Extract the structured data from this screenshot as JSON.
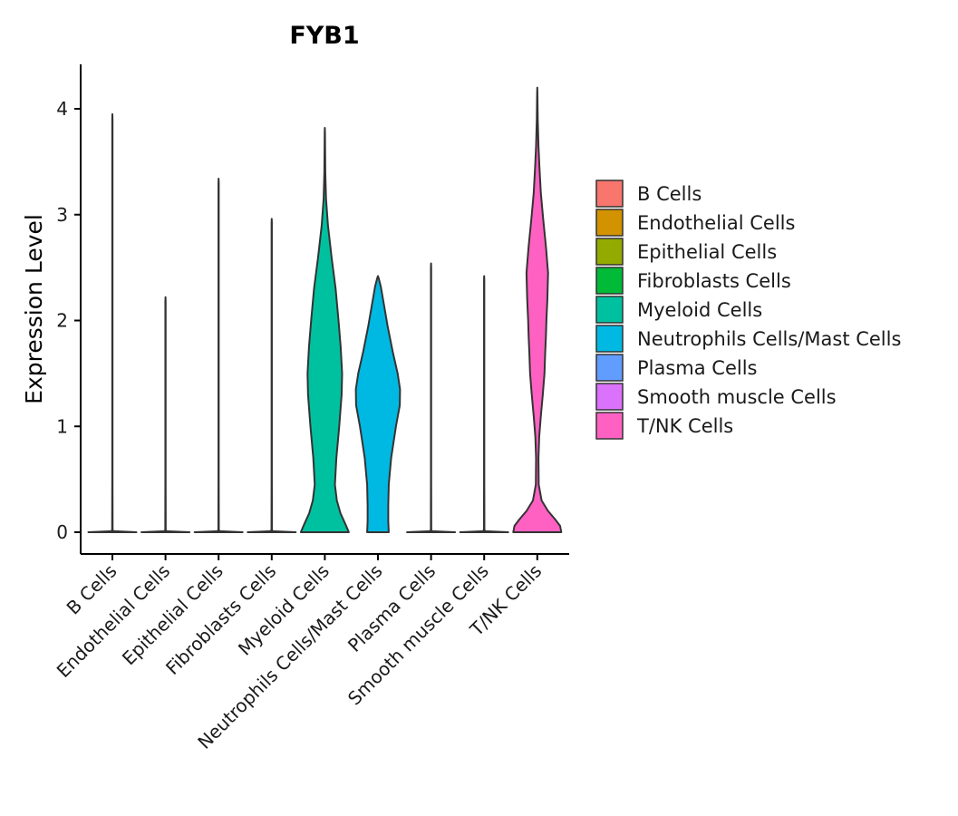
{
  "chart_data": {
    "type": "violin",
    "title": "FYB1",
    "xlabel": "",
    "ylabel": "Expression Level",
    "ylim": [
      -0.2,
      4.42
    ],
    "yticks": [
      0,
      1,
      2,
      3,
      4
    ],
    "categories": [
      "B Cells",
      "Endothelial Cells",
      "Epithelial Cells",
      "Fibroblasts Cells",
      "Myeloid Cells",
      "Neutrophils Cells/Mast Cells",
      "Plasma Cells",
      "Smooth muscle Cells",
      "T/NK Cells"
    ],
    "series": [
      {
        "name": "B Cells",
        "color": "#F8766D",
        "max": 3.95,
        "profile": [
          [
            0,
            1.0
          ],
          [
            0.01,
            0.05
          ],
          [
            0.02,
            0.01
          ],
          [
            0.5,
            0.006
          ],
          [
            3.9,
            0.006
          ],
          [
            3.95,
            0.0
          ]
        ]
      },
      {
        "name": "Endothelial Cells",
        "color": "#D39200",
        "max": 2.22,
        "profile": [
          [
            0,
            1.0
          ],
          [
            0.01,
            0.05
          ],
          [
            0.02,
            0.01
          ],
          [
            0.5,
            0.006
          ],
          [
            2.18,
            0.006
          ],
          [
            2.22,
            0.0
          ]
        ]
      },
      {
        "name": "Epithelial Cells",
        "color": "#93AA00",
        "max": 3.34,
        "profile": [
          [
            0,
            1.0
          ],
          [
            0.01,
            0.05
          ],
          [
            0.02,
            0.01
          ],
          [
            0.5,
            0.006
          ],
          [
            3.3,
            0.006
          ],
          [
            3.34,
            0.0
          ]
        ]
      },
      {
        "name": "Fibroblasts Cells",
        "color": "#00BA38",
        "max": 2.96,
        "profile": [
          [
            0,
            1.0
          ],
          [
            0.01,
            0.05
          ],
          [
            0.02,
            0.01
          ],
          [
            0.5,
            0.006
          ],
          [
            2.92,
            0.006
          ],
          [
            2.96,
            0.0
          ]
        ]
      },
      {
        "name": "Myeloid Cells",
        "color": "#00C19F",
        "max": 3.82,
        "profile": [
          [
            0,
            1.0
          ],
          [
            0.08,
            0.85
          ],
          [
            0.18,
            0.65
          ],
          [
            0.3,
            0.5
          ],
          [
            0.45,
            0.42
          ],
          [
            0.7,
            0.48
          ],
          [
            1.0,
            0.6
          ],
          [
            1.3,
            0.7
          ],
          [
            1.5,
            0.72
          ],
          [
            1.75,
            0.66
          ],
          [
            2.0,
            0.57
          ],
          [
            2.3,
            0.45
          ],
          [
            2.6,
            0.28
          ],
          [
            2.9,
            0.13
          ],
          [
            3.15,
            0.05
          ],
          [
            3.4,
            0.02
          ],
          [
            3.78,
            0.006
          ],
          [
            3.82,
            0.0
          ]
        ]
      },
      {
        "name": "Neutrophils Cells/Mast Cells",
        "color": "#00B9E3",
        "max": 2.42,
        "profile": [
          [
            0,
            0.45
          ],
          [
            0.1,
            0.43
          ],
          [
            0.25,
            0.43
          ],
          [
            0.45,
            0.45
          ],
          [
            0.7,
            0.55
          ],
          [
            1.0,
            0.75
          ],
          [
            1.2,
            0.91
          ],
          [
            1.35,
            0.92
          ],
          [
            1.5,
            0.82
          ],
          [
            1.7,
            0.62
          ],
          [
            1.95,
            0.4
          ],
          [
            2.15,
            0.25
          ],
          [
            2.32,
            0.12
          ],
          [
            2.4,
            0.03
          ],
          [
            2.42,
            0.0
          ]
        ]
      },
      {
        "name": "Plasma Cells",
        "color": "#619CFF",
        "max": 2.54,
        "profile": [
          [
            0,
            1.0
          ],
          [
            0.01,
            0.05
          ],
          [
            0.02,
            0.01
          ],
          [
            0.5,
            0.006
          ],
          [
            2.5,
            0.006
          ],
          [
            2.54,
            0.0
          ]
        ]
      },
      {
        "name": "Smooth muscle Cells",
        "color": "#DB72FB",
        "max": 2.42,
        "profile": [
          [
            0,
            1.0
          ],
          [
            0.01,
            0.05
          ],
          [
            0.02,
            0.01
          ],
          [
            0.5,
            0.006
          ],
          [
            2.38,
            0.006
          ],
          [
            2.42,
            0.0
          ]
        ]
      },
      {
        "name": "T/NK Cells",
        "color": "#FF61C3",
        "max": 4.2,
        "profile": [
          [
            0,
            1.0
          ],
          [
            0.06,
            0.95
          ],
          [
            0.12,
            0.75
          ],
          [
            0.2,
            0.45
          ],
          [
            0.3,
            0.18
          ],
          [
            0.45,
            0.06
          ],
          [
            0.7,
            0.05
          ],
          [
            0.9,
            0.08
          ],
          [
            1.1,
            0.15
          ],
          [
            1.3,
            0.23
          ],
          [
            1.5,
            0.3
          ],
          [
            1.7,
            0.33
          ],
          [
            1.85,
            0.36
          ],
          [
            2.0,
            0.38
          ],
          [
            2.2,
            0.42
          ],
          [
            2.45,
            0.45
          ],
          [
            2.7,
            0.36
          ],
          [
            2.95,
            0.25
          ],
          [
            3.2,
            0.15
          ],
          [
            3.45,
            0.09
          ],
          [
            3.65,
            0.05
          ],
          [
            3.9,
            0.02
          ],
          [
            4.15,
            0.006
          ],
          [
            4.2,
            0.0
          ]
        ]
      }
    ],
    "legend": {
      "placement": "right",
      "entries": [
        "B Cells",
        "Endothelial Cells",
        "Epithelial Cells",
        "Fibroblasts Cells",
        "Myeloid Cells",
        "Neutrophils Cells/Mast Cells",
        "Plasma Cells",
        "Smooth muscle Cells",
        "T/NK Cells"
      ]
    },
    "grid": false
  }
}
